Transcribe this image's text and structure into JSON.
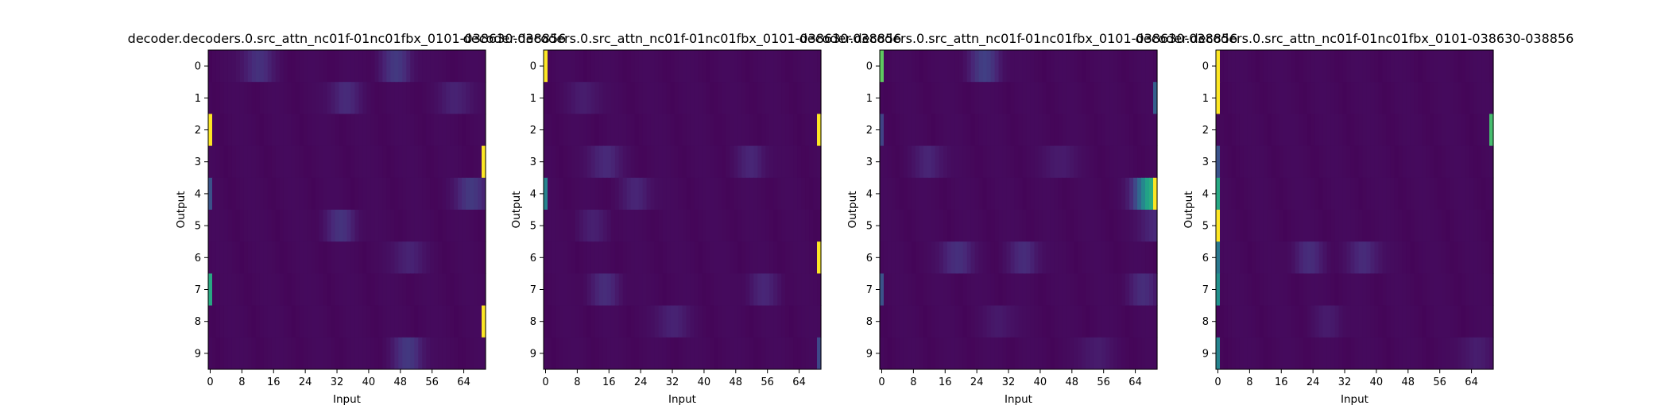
{
  "chart_data": [
    {
      "type": "heatmap",
      "title": "decoder.decoders.0.src_attn_nc01f-01nc01fbx_0101-038630-038856",
      "xlabel": "Input",
      "ylabel": "Output",
      "x_ticks": [
        "0",
        "8",
        "16",
        "24",
        "32",
        "40",
        "48",
        "56",
        "64"
      ],
      "y_ticks": [
        "0",
        "1",
        "2",
        "3",
        "4",
        "5",
        "6",
        "7",
        "8",
        "9"
      ],
      "n_cols": 70,
      "colormap": "viridis",
      "peaks": [
        {
          "row": 0,
          "col": 12,
          "value": 0.12
        },
        {
          "row": 0,
          "col": 47,
          "value": 0.14
        },
        {
          "row": 1,
          "col": 34,
          "value": 0.1
        },
        {
          "row": 1,
          "col": 62,
          "value": 0.08
        },
        {
          "row": 2,
          "col": 0,
          "value": 1.0
        },
        {
          "row": 3,
          "col": 69,
          "value": 1.0
        },
        {
          "row": 4,
          "col": 0,
          "value": 0.25
        },
        {
          "row": 4,
          "col": 66,
          "value": 0.15
        },
        {
          "row": 5,
          "col": 33,
          "value": 0.12
        },
        {
          "row": 6,
          "col": 50,
          "value": 0.08
        },
        {
          "row": 7,
          "col": 0,
          "value": 0.6
        },
        {
          "row": 8,
          "col": 69,
          "value": 1.0
        },
        {
          "row": 9,
          "col": 50,
          "value": 0.14
        }
      ]
    },
    {
      "type": "heatmap",
      "title": "decoder.decoders.0.src_attn_nc01f-01nc01fbx_0101-038630-038856",
      "xlabel": "Input",
      "ylabel": "Output",
      "x_ticks": [
        "0",
        "8",
        "16",
        "24",
        "32",
        "40",
        "48",
        "56",
        "64"
      ],
      "y_ticks": [
        "0",
        "1",
        "2",
        "3",
        "4",
        "5",
        "6",
        "7",
        "8",
        "9"
      ],
      "n_cols": 70,
      "colormap": "viridis",
      "peaks": [
        {
          "row": 0,
          "col": 0,
          "value": 1.0
        },
        {
          "row": 1,
          "col": 10,
          "value": 0.06
        },
        {
          "row": 2,
          "col": 69,
          "value": 1.0
        },
        {
          "row": 3,
          "col": 15,
          "value": 0.1
        },
        {
          "row": 3,
          "col": 52,
          "value": 0.08
        },
        {
          "row": 4,
          "col": 0,
          "value": 0.45
        },
        {
          "row": 4,
          "col": 23,
          "value": 0.08
        },
        {
          "row": 5,
          "col": 12,
          "value": 0.06
        },
        {
          "row": 6,
          "col": 69,
          "value": 1.0
        },
        {
          "row": 7,
          "col": 15,
          "value": 0.1
        },
        {
          "row": 7,
          "col": 55,
          "value": 0.08
        },
        {
          "row": 8,
          "col": 32,
          "value": 0.08
        },
        {
          "row": 9,
          "col": 69,
          "value": 0.22
        }
      ]
    },
    {
      "type": "heatmap",
      "title": "decoder.decoders.0.src_attn_nc01f-01nc01fbx_0101-038630-038856",
      "xlabel": "Input",
      "ylabel": "Output",
      "x_ticks": [
        "0",
        "8",
        "16",
        "24",
        "32",
        "40",
        "48",
        "56",
        "64"
      ],
      "y_ticks": [
        "0",
        "1",
        "2",
        "3",
        "4",
        "5",
        "6",
        "7",
        "8",
        "9"
      ],
      "n_cols": 70,
      "colormap": "viridis",
      "peaks": [
        {
          "row": 0,
          "col": 0,
          "value": 0.75
        },
        {
          "row": 0,
          "col": 26,
          "value": 0.16
        },
        {
          "row": 1,
          "col": 69,
          "value": 0.3
        },
        {
          "row": 2,
          "col": 0,
          "value": 0.2
        },
        {
          "row": 3,
          "col": 12,
          "value": 0.08
        },
        {
          "row": 3,
          "col": 45,
          "value": 0.06
        },
        {
          "row": 4,
          "col": 69,
          "value": 1.0
        },
        {
          "row": 4,
          "col": 68,
          "value": 0.6
        },
        {
          "row": 5,
          "col": 69,
          "value": 0.1
        },
        {
          "row": 6,
          "col": 19,
          "value": 0.12
        },
        {
          "row": 6,
          "col": 36,
          "value": 0.1
        },
        {
          "row": 7,
          "col": 0,
          "value": 0.25
        },
        {
          "row": 7,
          "col": 66,
          "value": 0.1
        },
        {
          "row": 8,
          "col": 30,
          "value": 0.05
        },
        {
          "row": 9,
          "col": 54,
          "value": 0.06
        }
      ]
    },
    {
      "type": "heatmap",
      "title": "decoder.decoders.0.src_attn_nc01f-01nc01fbx_0101-038630-038856",
      "xlabel": "Input",
      "ylabel": "Output",
      "x_ticks": [
        "0",
        "8",
        "16",
        "24",
        "32",
        "40",
        "48",
        "56",
        "64"
      ],
      "y_ticks": [
        "0",
        "1",
        "2",
        "3",
        "4",
        "5",
        "6",
        "7",
        "8",
        "9"
      ],
      "n_cols": 70,
      "colormap": "viridis",
      "peaks": [
        {
          "row": 0,
          "col": 0,
          "value": 1.0
        },
        {
          "row": 1,
          "col": 0,
          "value": 1.0
        },
        {
          "row": 2,
          "col": 69,
          "value": 0.7
        },
        {
          "row": 3,
          "col": 0,
          "value": 0.25
        },
        {
          "row": 4,
          "col": 0,
          "value": 0.6
        },
        {
          "row": 5,
          "col": 0,
          "value": 1.0
        },
        {
          "row": 6,
          "col": 0,
          "value": 0.4
        },
        {
          "row": 6,
          "col": 23,
          "value": 0.1
        },
        {
          "row": 6,
          "col": 37,
          "value": 0.1
        },
        {
          "row": 7,
          "col": 0,
          "value": 0.5
        },
        {
          "row": 8,
          "col": 28,
          "value": 0.05
        },
        {
          "row": 9,
          "col": 0,
          "value": 0.45
        },
        {
          "row": 9,
          "col": 65,
          "value": 0.06
        }
      ]
    }
  ]
}
